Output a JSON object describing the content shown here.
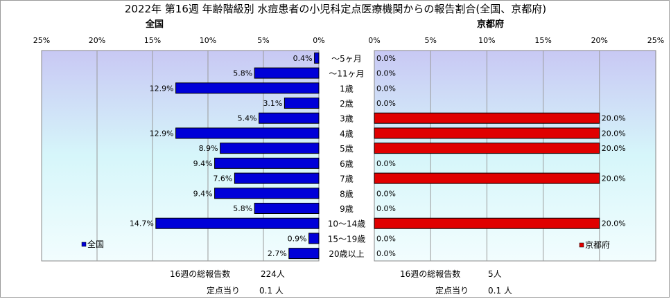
{
  "title": "2022年 第16週 年齢階級別 水痘患者の小児科定点医療機関からの報告割合(全国、京都府)",
  "chart_data": {
    "type": "bar",
    "orientation": "horizontal",
    "categories": [
      "～5ヶ月",
      "～11ヶ月",
      "1歳",
      "2歳",
      "3歳",
      "4歳",
      "5歳",
      "6歳",
      "7歳",
      "8歳",
      "9歳",
      "10～14歳",
      "15～19歳",
      "20歳以上"
    ],
    "panels": [
      {
        "title": "全国",
        "legend": "全国",
        "legend_position": "bottom-left",
        "direction": "right-to-left",
        "color": "#0000d8",
        "xlim": [
          0,
          25
        ],
        "ticks": [
          "25%",
          "20%",
          "15%",
          "10%",
          "5%",
          "0%"
        ],
        "values": [
          0.4,
          5.8,
          12.9,
          3.1,
          5.4,
          12.9,
          8.9,
          9.4,
          7.6,
          9.4,
          5.8,
          14.7,
          0.9,
          2.7
        ],
        "labels": [
          "0.4%",
          "5.8%",
          "12.9%",
          "3.1%",
          "5.4%",
          "12.9%",
          "8.9%",
          "9.4%",
          "7.6%",
          "9.4%",
          "5.8%",
          "14.7%",
          "0.9%",
          "2.7%"
        ]
      },
      {
        "title": "京都府",
        "legend": "京都府",
        "legend_position": "bottom-right",
        "direction": "left-to-right",
        "color": "#e00000",
        "xlim": [
          0,
          25
        ],
        "ticks": [
          "0%",
          "5%",
          "10%",
          "15%",
          "20%",
          "25%"
        ],
        "values": [
          0,
          0,
          0,
          0,
          20,
          20,
          20,
          0,
          20,
          0,
          0,
          20,
          0,
          0
        ],
        "labels": [
          "0.0%",
          "0.0%",
          "0.0%",
          "0.0%",
          "20.0%",
          "20.0%",
          "20.0%",
          "0.0%",
          "20.0%",
          "0.0%",
          "0.0%",
          "20.0%",
          "0.0%",
          "0.0%"
        ]
      }
    ]
  },
  "footer": {
    "left": {
      "reports_label": "16週の総報告数",
      "reports_value": "224人",
      "per_site_label": "定点当り",
      "per_site_value": "0.1 人"
    },
    "right": {
      "reports_label": "16週の総報告数",
      "reports_value": "5人",
      "per_site_label": "定点当り",
      "per_site_value": "0.1 人"
    }
  }
}
